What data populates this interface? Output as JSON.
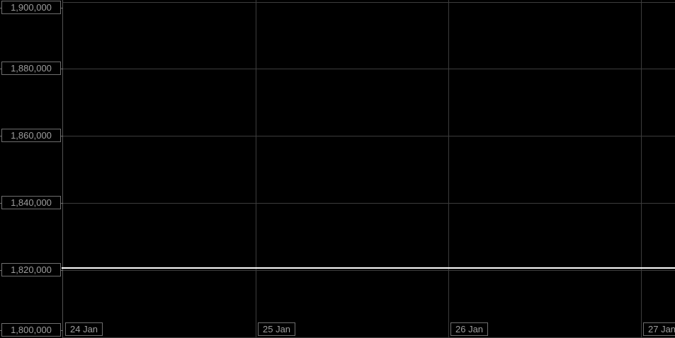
{
  "chart_data": {
    "type": "line",
    "title": "",
    "xlabel": "",
    "ylabel": "",
    "x": [
      "24 Jan",
      "25 Jan",
      "26 Jan",
      "27 Jan"
    ],
    "series": [
      {
        "name": "price",
        "values": [
          1820600,
          1820600,
          1820600,
          1820600
        ]
      }
    ],
    "ylim": [
      1800000,
      1900000
    ],
    "y_tick_interval": 20000,
    "grid": true,
    "legend": false,
    "notes": "flat white price line at ~1,820,600 spanning 24 Jan through partial 27 Jan on black background"
  },
  "y_axis": {
    "ticks": [
      {
        "value": 1900000,
        "label": "1,900,000"
      },
      {
        "value": 1880000,
        "label": "1,880,000"
      },
      {
        "value": 1860000,
        "label": "1,860,000"
      },
      {
        "value": 1840000,
        "label": "1,840,000"
      },
      {
        "value": 1820000,
        "label": "1,820,000"
      },
      {
        "value": 1800000,
        "label": "1,800,000"
      }
    ]
  },
  "x_axis": {
    "ticks": [
      {
        "label": "24 Jan"
      },
      {
        "label": "25 Jan"
      },
      {
        "label": "26 Jan"
      },
      {
        "label": "27 Jan"
      }
    ]
  },
  "price_line": {
    "value": 1820600,
    "color": "#fdfdfd"
  },
  "style": {
    "background_color": "#000000",
    "gridline_color": "#3d3d3d",
    "axis_line_color": "#525252",
    "label_text_color": "#9e9e9e",
    "label_border_color": "#6f6f6f"
  }
}
